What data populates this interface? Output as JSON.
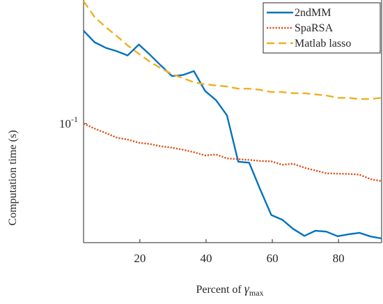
{
  "chart_data": {
    "type": "line",
    "title": "",
    "xlabel_prefix": "Percent of ",
    "xlabel_symbol": "γ",
    "xlabel_subscript": "max",
    "ylabel": "Computation time (s)",
    "xlim": [
      3,
      93
    ],
    "ylim": [
      0.043,
      0.24
    ],
    "yscale": "log",
    "x_ticks": [
      20,
      40,
      60,
      80
    ],
    "x_tick_labels": [
      "20",
      "40",
      "60",
      "80"
    ],
    "y_ticks": [
      0.1
    ],
    "y_tick_labels_base": [
      "10"
    ],
    "y_tick_labels_exp": [
      "-1"
    ],
    "grid": false,
    "legend_position": "top-right",
    "series": [
      {
        "name": "2ndMM",
        "color": "#0072BD",
        "dash": "solid",
        "x": [
          3,
          6.3,
          9.7,
          13,
          16.3,
          19.7,
          23,
          26.3,
          29.7,
          33,
          36.3,
          39.7,
          43,
          46.3,
          49.7,
          53,
          56.3,
          59.7,
          63,
          66.3,
          69.7,
          73,
          76.3,
          79.7,
          83,
          86.3,
          89.7,
          93
        ],
        "y": [
          0.193,
          0.178,
          0.171,
          0.167,
          0.162,
          0.175,
          0.163,
          0.151,
          0.14,
          0.141,
          0.145,
          0.126,
          0.118,
          0.106,
          0.0763,
          0.0758,
          0.0628,
          0.0523,
          0.0506,
          0.0474,
          0.0451,
          0.0468,
          0.0465,
          0.045,
          0.0456,
          0.0461,
          0.0449,
          0.0443
        ]
      },
      {
        "name": "SpaRSA",
        "color": "#D95319",
        "dash": "dotted",
        "x": [
          3,
          6.3,
          9.7,
          13,
          16.3,
          19.7,
          23,
          26.3,
          29.7,
          33,
          36.3,
          39.7,
          43,
          46.3,
          49.7,
          53,
          56.3,
          59.7,
          63,
          66.3,
          69.7,
          73,
          76.3,
          79.7,
          83,
          86.3,
          89.7,
          93
        ],
        "y": [
          0.1,
          0.0965,
          0.0935,
          0.0905,
          0.0893,
          0.0873,
          0.0865,
          0.0851,
          0.0843,
          0.0831,
          0.0816,
          0.0798,
          0.0803,
          0.0781,
          0.0777,
          0.0773,
          0.0767,
          0.0765,
          0.0747,
          0.0752,
          0.0731,
          0.0717,
          0.0703,
          0.0701,
          0.07,
          0.0696,
          0.0674,
          0.0665
        ]
      },
      {
        "name": "Matlab lasso",
        "color": "#EDB120",
        "dash": "dashed",
        "x": [
          3,
          6.3,
          9.7,
          13,
          16.3,
          19.7,
          23,
          26.3,
          29.7,
          33,
          36.3,
          39.7,
          43,
          46.3,
          49.7,
          53,
          56.3,
          59.7,
          63,
          66.3,
          69.7,
          73,
          76.3,
          79.7,
          83,
          86.3,
          89.7,
          93
        ],
        "y": [
          0.238,
          0.213,
          0.198,
          0.186,
          0.174,
          0.164,
          0.155,
          0.148,
          0.142,
          0.138,
          0.134,
          0.132,
          0.131,
          0.13,
          0.128,
          0.128,
          0.127,
          0.125,
          0.125,
          0.124,
          0.124,
          0.123,
          0.122,
          0.12,
          0.12,
          0.119,
          0.119,
          0.12
        ]
      }
    ]
  }
}
